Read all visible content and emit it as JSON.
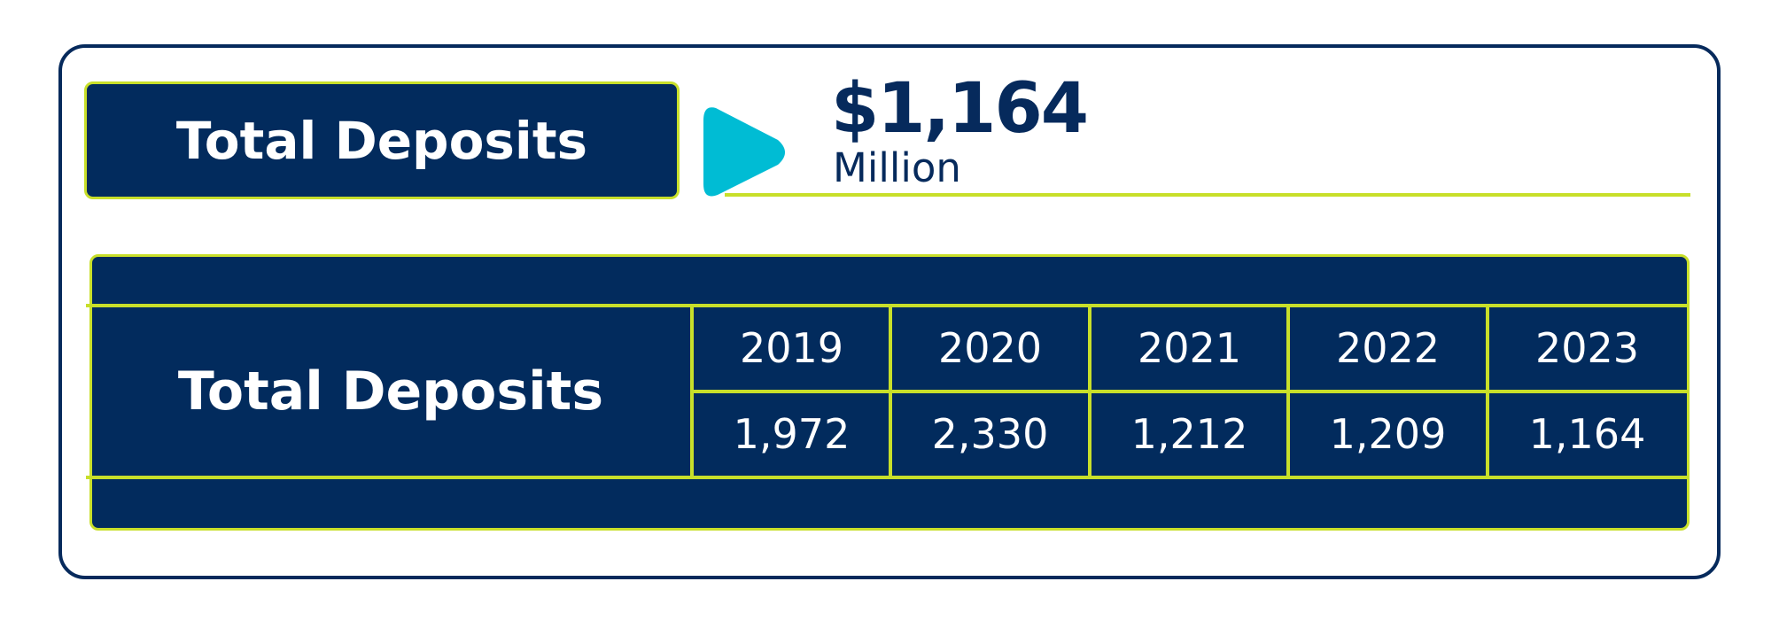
{
  "title_box": {
    "label": "Total Deposits"
  },
  "headline": {
    "value": "$1,164",
    "unit": "Million"
  },
  "table": {
    "row_label": "Total Deposits",
    "years": [
      "2019",
      "2020",
      "2021",
      "2022",
      "2023"
    ],
    "values": [
      "1,972",
      "2,330",
      "1,212",
      "1,209",
      "1,164"
    ]
  },
  "colors": {
    "navy": "#022b5d",
    "lime": "#c8df2a",
    "cyan": "#00bcd4",
    "white": "#ffffff"
  },
  "icons": {
    "pointer": "play-triangle-icon"
  }
}
